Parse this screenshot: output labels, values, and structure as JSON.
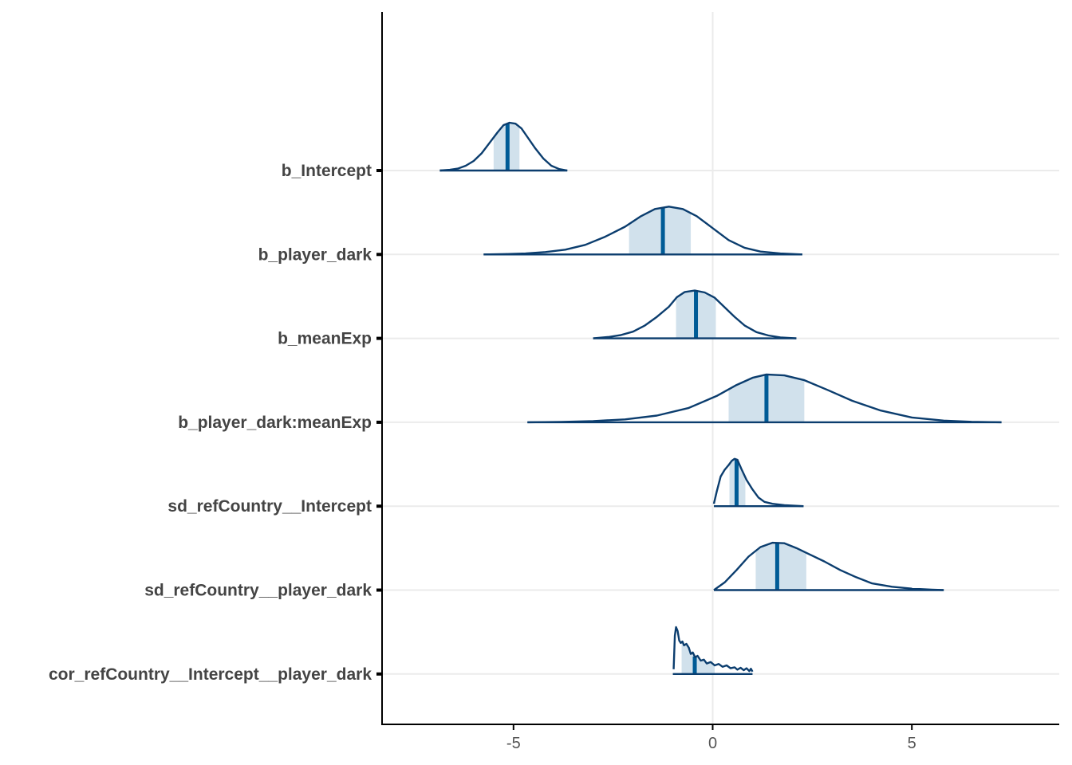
{
  "chart_data": {
    "type": "ridgeline",
    "title": "",
    "xlabel": "",
    "ylabel": "",
    "xlim": [
      -8.3,
      8.7
    ],
    "x_ticks": [
      -5,
      0,
      5
    ],
    "x_tick_labels": [
      "-5",
      "0",
      "5"
    ],
    "grid": "horizontal and x=0 vertical",
    "colors": {
      "outline": "#0b3d6e",
      "interval_fill": "#d1e1ec",
      "median": "#005b96",
      "grid": "#ebebeb",
      "axis": "#000000",
      "label": "#444444"
    },
    "series": [
      {
        "label": "b_Intercept",
        "range": [
          -6.85,
          -3.65
        ],
        "inner_interval": [
          -5.5,
          -4.85
        ],
        "median": -5.15,
        "density_points": [
          [
            -6.85,
            0.0
          ],
          [
            -6.6,
            0.015
          ],
          [
            -6.4,
            0.04
          ],
          [
            -6.2,
            0.1
          ],
          [
            -6.0,
            0.2
          ],
          [
            -5.8,
            0.36
          ],
          [
            -5.6,
            0.58
          ],
          [
            -5.4,
            0.8
          ],
          [
            -5.25,
            0.95
          ],
          [
            -5.1,
            1.0
          ],
          [
            -4.95,
            0.98
          ],
          [
            -4.8,
            0.88
          ],
          [
            -4.65,
            0.7
          ],
          [
            -4.45,
            0.46
          ],
          [
            -4.25,
            0.25
          ],
          [
            -4.05,
            0.1
          ],
          [
            -3.85,
            0.03
          ],
          [
            -3.65,
            0.0
          ]
        ]
      },
      {
        "label": "b_player_dark",
        "range": [
          -5.75,
          2.25
        ],
        "inner_interval": [
          -2.1,
          -0.55
        ],
        "median": -1.25,
        "density_points": [
          [
            -5.75,
            0.0
          ],
          [
            -5.2,
            0.008
          ],
          [
            -4.7,
            0.02
          ],
          [
            -4.2,
            0.05
          ],
          [
            -3.7,
            0.1
          ],
          [
            -3.2,
            0.2
          ],
          [
            -2.7,
            0.37
          ],
          [
            -2.2,
            0.58
          ],
          [
            -1.8,
            0.8
          ],
          [
            -1.45,
            0.95
          ],
          [
            -1.1,
            1.0
          ],
          [
            -0.75,
            0.95
          ],
          [
            -0.4,
            0.8
          ],
          [
            0.0,
            0.55
          ],
          [
            0.4,
            0.3
          ],
          [
            0.8,
            0.14
          ],
          [
            1.2,
            0.06
          ],
          [
            1.7,
            0.02
          ],
          [
            2.25,
            0.0
          ]
        ]
      },
      {
        "label": "b_meanExp",
        "range": [
          -3.0,
          2.1
        ],
        "inner_interval": [
          -0.92,
          0.08
        ],
        "median": -0.42,
        "density_points": [
          [
            -3.0,
            0.0
          ],
          [
            -2.6,
            0.03
          ],
          [
            -2.3,
            0.07
          ],
          [
            -2.0,
            0.14
          ],
          [
            -1.7,
            0.27
          ],
          [
            -1.4,
            0.45
          ],
          [
            -1.1,
            0.66
          ],
          [
            -0.9,
            0.86
          ],
          [
            -0.7,
            0.97
          ],
          [
            -0.45,
            1.0
          ],
          [
            -0.2,
            0.96
          ],
          [
            0.05,
            0.85
          ],
          [
            0.3,
            0.65
          ],
          [
            0.55,
            0.45
          ],
          [
            0.8,
            0.27
          ],
          [
            1.1,
            0.13
          ],
          [
            1.4,
            0.06
          ],
          [
            1.7,
            0.02
          ],
          [
            2.1,
            0.0
          ]
        ]
      },
      {
        "label": "b_player_dark:meanExp",
        "range": [
          -4.65,
          7.25
        ],
        "inner_interval": [
          0.4,
          2.3
        ],
        "median": 1.35,
        "density_points": [
          [
            -4.65,
            0.0
          ],
          [
            -3.8,
            0.008
          ],
          [
            -3.0,
            0.025
          ],
          [
            -2.2,
            0.06
          ],
          [
            -1.4,
            0.14
          ],
          [
            -0.6,
            0.3
          ],
          [
            0.1,
            0.55
          ],
          [
            0.6,
            0.78
          ],
          [
            1.0,
            0.93
          ],
          [
            1.35,
            1.0
          ],
          [
            1.8,
            0.98
          ],
          [
            2.3,
            0.88
          ],
          [
            2.9,
            0.67
          ],
          [
            3.5,
            0.45
          ],
          [
            4.2,
            0.25
          ],
          [
            5.0,
            0.1
          ],
          [
            5.8,
            0.035
          ],
          [
            6.5,
            0.01
          ],
          [
            7.25,
            0.0
          ]
        ]
      },
      {
        "label": "sd_refCountry__Intercept",
        "range": [
          0.03,
          2.28
        ],
        "inner_interval": [
          0.42,
          0.82
        ],
        "median": 0.6,
        "density_points": [
          [
            0.03,
            0.05
          ],
          [
            0.1,
            0.3
          ],
          [
            0.2,
            0.62
          ],
          [
            0.3,
            0.76
          ],
          [
            0.4,
            0.86
          ],
          [
            0.48,
            0.95
          ],
          [
            0.55,
            0.99
          ],
          [
            0.62,
            0.97
          ],
          [
            0.72,
            0.78
          ],
          [
            0.85,
            0.55
          ],
          [
            1.0,
            0.35
          ],
          [
            1.15,
            0.18
          ],
          [
            1.3,
            0.09
          ],
          [
            1.5,
            0.05
          ],
          [
            1.8,
            0.02
          ],
          [
            2.28,
            0.0
          ]
        ]
      },
      {
        "label": "sd_refCountry__player_dark",
        "range": [
          0.03,
          5.8
        ],
        "inner_interval": [
          1.08,
          2.35
        ],
        "median": 1.62,
        "density_points": [
          [
            0.03,
            0.0
          ],
          [
            0.3,
            0.16
          ],
          [
            0.6,
            0.42
          ],
          [
            0.9,
            0.7
          ],
          [
            1.2,
            0.9
          ],
          [
            1.5,
            0.99
          ],
          [
            1.8,
            0.98
          ],
          [
            2.1,
            0.88
          ],
          [
            2.4,
            0.76
          ],
          [
            2.8,
            0.6
          ],
          [
            3.2,
            0.42
          ],
          [
            3.6,
            0.27
          ],
          [
            4.0,
            0.14
          ],
          [
            4.5,
            0.07
          ],
          [
            5.0,
            0.03
          ],
          [
            5.5,
            0.01
          ],
          [
            5.8,
            0.0
          ]
        ]
      },
      {
        "label": "cor_refCountry__Intercept__player_dark",
        "range": [
          -1.0,
          1.0
        ],
        "inner_interval": [
          -0.78,
          0.05
        ],
        "median": -0.45,
        "density_points": [
          [
            -0.98,
            0.1
          ],
          [
            -0.95,
            0.8
          ],
          [
            -0.92,
            0.98
          ],
          [
            -0.88,
            0.9
          ],
          [
            -0.84,
            0.7
          ],
          [
            -0.8,
            0.65
          ],
          [
            -0.76,
            0.68
          ],
          [
            -0.72,
            0.6
          ],
          [
            -0.66,
            0.63
          ],
          [
            -0.6,
            0.55
          ],
          [
            -0.55,
            0.42
          ],
          [
            -0.5,
            0.45
          ],
          [
            -0.44,
            0.35
          ],
          [
            -0.38,
            0.38
          ],
          [
            -0.3,
            0.28
          ],
          [
            -0.22,
            0.3
          ],
          [
            -0.15,
            0.22
          ],
          [
            -0.05,
            0.25
          ],
          [
            0.05,
            0.18
          ],
          [
            0.15,
            0.21
          ],
          [
            0.25,
            0.15
          ],
          [
            0.35,
            0.18
          ],
          [
            0.45,
            0.12
          ],
          [
            0.55,
            0.14
          ],
          [
            0.62,
            0.09
          ],
          [
            0.7,
            0.13
          ],
          [
            0.78,
            0.08
          ],
          [
            0.85,
            0.12
          ],
          [
            0.92,
            0.06
          ],
          [
            0.96,
            0.11
          ],
          [
            1.0,
            0.05
          ]
        ]
      }
    ]
  }
}
